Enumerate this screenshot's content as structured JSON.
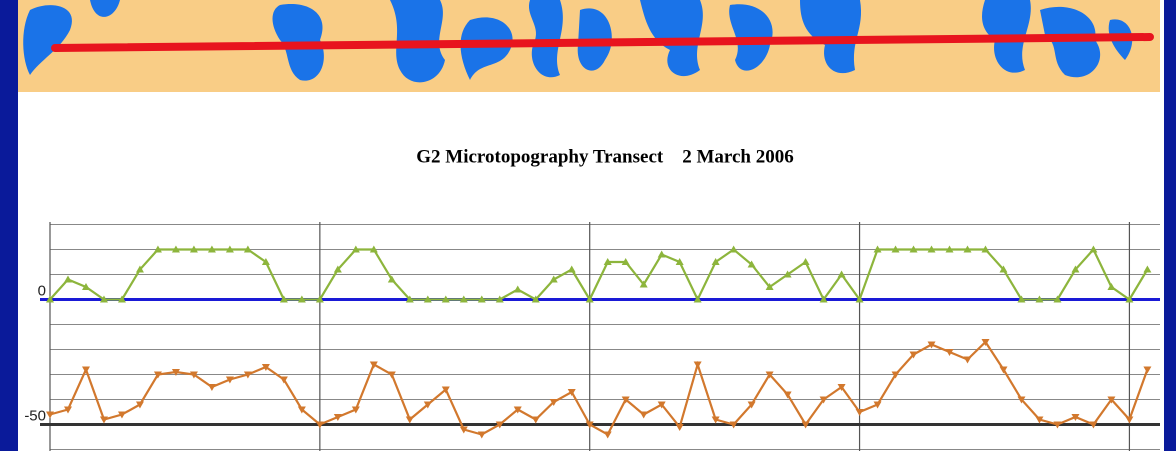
{
  "chart_data": {
    "type": "line",
    "title": "G2 Microtopography Transect    2 March 2006",
    "x": [
      0,
      1,
      2,
      3,
      4,
      5,
      6,
      7,
      8,
      9,
      10,
      11,
      12,
      13,
      14,
      15,
      16,
      17,
      18,
      19,
      20,
      21,
      22,
      23,
      24,
      25,
      26,
      27,
      28,
      29,
      30,
      31,
      32,
      33,
      34,
      35,
      36,
      37,
      38,
      39,
      40,
      41,
      42,
      43,
      44,
      45,
      46,
      47,
      48,
      49,
      50,
      51,
      52,
      53,
      54,
      55,
      56,
      57,
      58,
      59,
      60,
      61
    ],
    "xlim": [
      0,
      61.7
    ],
    "xgrid": [
      15,
      30,
      45,
      60
    ],
    "ylim": [
      -60,
      31
    ],
    "yticks": [
      -50,
      0
    ],
    "ygrid": [
      -60,
      -50,
      -40,
      -30,
      -20,
      -10,
      0,
      10,
      20,
      30
    ],
    "baseline_color": "#1a1ad6",
    "series": [
      {
        "color": "#8db53c",
        "marker": "triangle-up",
        "values": [
          0,
          8,
          5,
          0,
          0,
          12,
          20,
          20,
          20,
          20,
          20,
          20,
          15,
          0,
          0,
          0,
          12,
          20,
          20,
          8,
          0,
          0,
          0,
          0,
          0,
          0,
          4,
          0,
          8,
          12,
          0,
          15,
          15,
          6,
          18,
          15,
          0,
          15,
          20,
          14,
          5,
          10,
          15,
          0,
          10,
          0,
          20,
          20,
          20,
          20,
          20,
          20,
          20,
          12,
          0,
          0,
          0,
          12,
          20,
          5,
          0,
          12
        ]
      },
      {
        "color": "#d2782d",
        "marker": "triangle-down",
        "values": [
          -46,
          -44,
          -28,
          -48,
          -46,
          -42,
          -30,
          -29,
          -30,
          -35,
          -32,
          -30,
          -27,
          -32,
          -44,
          -50,
          -47,
          -44,
          -26,
          -30,
          -48,
          -42,
          -36,
          -52,
          -54,
          -50,
          -44,
          -48,
          -41,
          -37,
          -50,
          -54,
          -40,
          -46,
          -42,
          -51,
          -26,
          -48,
          -50,
          -42,
          -30,
          -38,
          -50,
          -40,
          -35,
          -45,
          -42,
          -30,
          -22,
          -18,
          -21,
          -24,
          -17,
          -28,
          -40,
          -48,
          -50,
          -47,
          -50,
          -40,
          -48,
          -28
        ]
      }
    ]
  }
}
